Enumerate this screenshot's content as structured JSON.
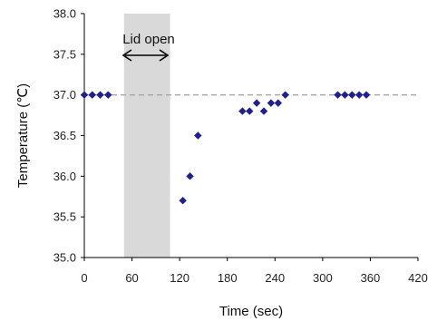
{
  "chart_data": {
    "type": "scatter",
    "title": "",
    "xlabel": "Time (sec)",
    "ylabel": "Temperature (℃)",
    "xlim": [
      0,
      420
    ],
    "ylim": [
      35.0,
      38.0
    ],
    "x_ticks": [
      0,
      60,
      120,
      180,
      240,
      300,
      360,
      420
    ],
    "y_ticks": [
      "35.0",
      "35.5",
      "36.0",
      "36.5",
      "37.0",
      "37.5",
      "38.0"
    ],
    "grid": false,
    "reference_line": {
      "y": 37.0,
      "style": "dashed",
      "color": "#a6a6a6"
    },
    "shaded_region": {
      "x_start": 50,
      "x_end": 108,
      "color": "#d9d9d9",
      "label": "Lid open"
    },
    "series": [
      {
        "marker": "diamond",
        "color": "#1f1f8f",
        "points": [
          {
            "x": 0,
            "y": 37.0
          },
          {
            "x": 10,
            "y": 37.0
          },
          {
            "x": 20,
            "y": 37.0
          },
          {
            "x": 30,
            "y": 37.0
          },
          {
            "x": 124,
            "y": 35.7
          },
          {
            "x": 133,
            "y": 36.0
          },
          {
            "x": 143,
            "y": 36.5
          },
          {
            "x": 199,
            "y": 36.8
          },
          {
            "x": 208,
            "y": 36.8
          },
          {
            "x": 217,
            "y": 36.9
          },
          {
            "x": 226,
            "y": 36.8
          },
          {
            "x": 235,
            "y": 36.9
          },
          {
            "x": 244,
            "y": 36.9
          },
          {
            "x": 253,
            "y": 37.0
          },
          {
            "x": 319,
            "y": 37.0
          },
          {
            "x": 328,
            "y": 37.0
          },
          {
            "x": 337,
            "y": 37.0
          },
          {
            "x": 346,
            "y": 37.0
          },
          {
            "x": 355,
            "y": 37.0
          }
        ]
      }
    ]
  }
}
